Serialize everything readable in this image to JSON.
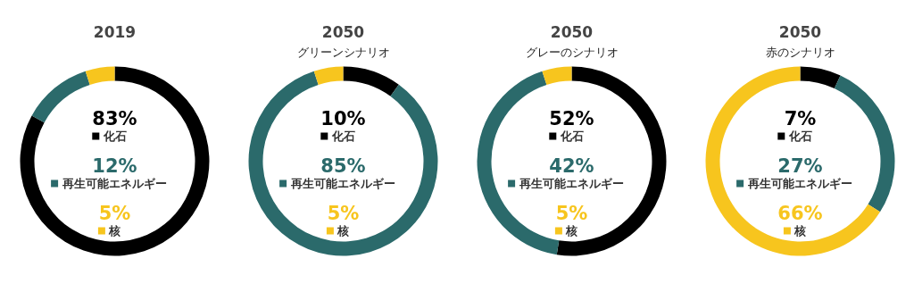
{
  "chart_data": [
    {
      "type": "donut",
      "title": "2019",
      "categories": [
        "化石",
        "再生可能エネルギー",
        "核"
      ],
      "values": [
        83,
        12,
        5
      ],
      "colors": [
        "#000000",
        "#2b6a6b",
        "#f7c51e"
      ],
      "value_labels": [
        "83%",
        "12%",
        "5%"
      ],
      "legend": "center"
    },
    {
      "type": "donut",
      "title": "2050",
      "subtitle": "グリーンシナリオ",
      "categories": [
        "化石",
        "再生可能エネルギー",
        "核"
      ],
      "values": [
        10,
        85,
        5
      ],
      "colors": [
        "#000000",
        "#2b6a6b",
        "#f7c51e"
      ],
      "value_labels": [
        "10%",
        "85%",
        "5%"
      ],
      "legend": "center"
    },
    {
      "type": "donut",
      "title": "2050",
      "subtitle": "グレーのシナリオ",
      "categories": [
        "化石",
        "再生可能エネルギー",
        "核"
      ],
      "values": [
        52,
        42,
        5
      ],
      "colors": [
        "#000000",
        "#2b6a6b",
        "#f7c51e"
      ],
      "value_labels": [
        "52%",
        "42%",
        "5%"
      ],
      "legend": "center"
    },
    {
      "type": "donut",
      "title": "2050",
      "subtitle": "赤のシナリオ",
      "categories": [
        "化石",
        "再生可能エネルギー",
        "核"
      ],
      "values": [
        7,
        27,
        66
      ],
      "colors": [
        "#000000",
        "#2b6a6b",
        "#f7c51e"
      ],
      "value_labels": [
        "7%",
        "27%",
        "66%"
      ],
      "legend": "center"
    }
  ]
}
